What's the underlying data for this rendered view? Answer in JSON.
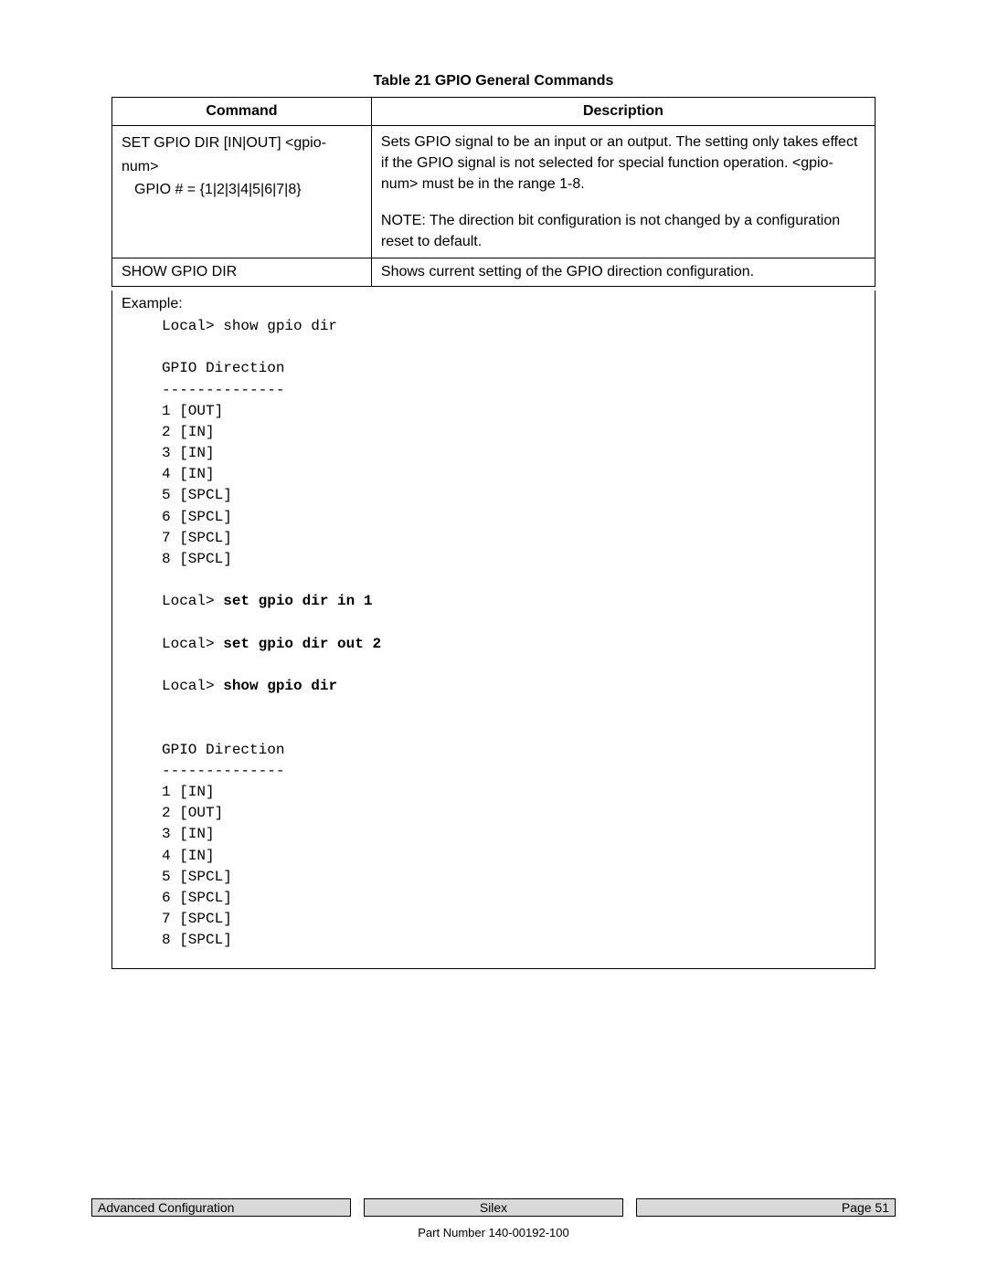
{
  "caption": "Table 21  GPIO General Commands",
  "headers": {
    "command": "Command",
    "description": "Description"
  },
  "rows": [
    {
      "cmd_line1": "SET GPIO DIR [IN|OUT] <gpio-num>",
      "cmd_line2": "GPIO # = {1|2|3|4|5|6|7|8}",
      "desc_p1": "Sets GPIO signal to be an input or an output.  The setting only takes effect if the GPIO signal is not selected for special function operation.  <gpio-num> must be in the range 1-8.",
      "desc_p2": "NOTE:  The direction bit configuration is not changed by a configuration reset to default."
    },
    {
      "cmd": "SHOW GPIO DIR",
      "desc": "Shows current setting of the GPIO direction configuration."
    }
  ],
  "example": {
    "label": "Example:",
    "line_show1": "Local> show gpio dir",
    "hdr": "GPIO Direction",
    "dash": "--------------",
    "first": {
      "l1": "1 [OUT]",
      "l2": "2 [IN]",
      "l3": "3 [IN]",
      "l4": "4 [IN]",
      "l5": "5 [SPCL]",
      "l6": "6 [SPCL]",
      "l7": "7 [SPCL]",
      "l8": "8 [SPCL]"
    },
    "line_set1_a": "Local> ",
    "line_set1_b": "set gpio dir in 1",
    "line_set2_a": "Local> ",
    "line_set2_b": "set gpio dir out 2",
    "line_show2_a": "Local> ",
    "line_show2_b": "show gpio dir",
    "second": {
      "l1": "1 [IN]",
      "l2": "2 [OUT]",
      "l3": "3 [IN]",
      "l4": "4 [IN]",
      "l5": "5 [SPCL]",
      "l6": "6 [SPCL]",
      "l7": "7 [SPCL]",
      "l8": "8 [SPCL]"
    }
  },
  "footer": {
    "left": "Advanced Configuration",
    "center": "Silex",
    "right": "Page 51",
    "part": "Part Number 140-00192-100"
  }
}
